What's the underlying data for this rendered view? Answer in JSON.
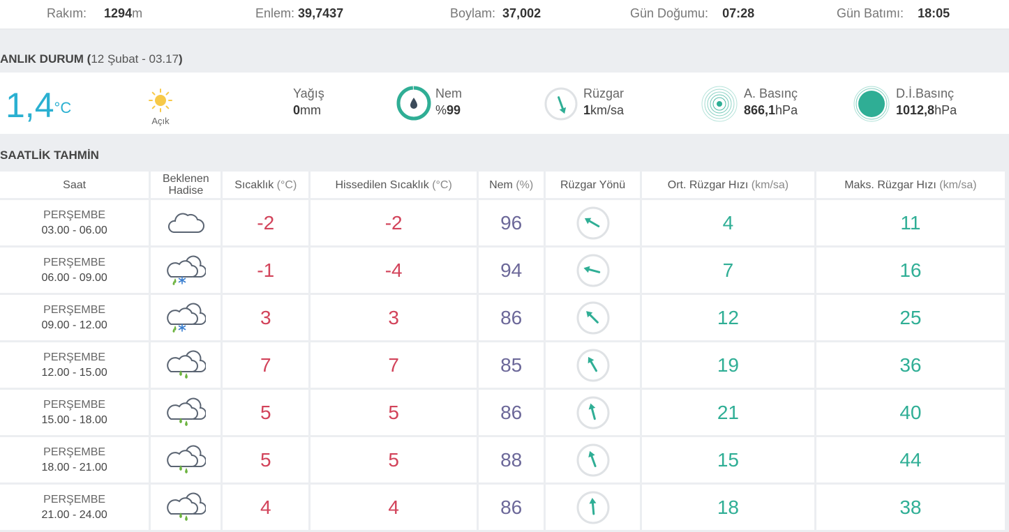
{
  "topbar": {
    "altitude_label": "Rakım:",
    "altitude_value": "1294",
    "altitude_unit": "m",
    "lat_label": "Enlem:",
    "lat_value": "39,7437",
    "lon_label": "Boylam:",
    "lon_value": "37,002",
    "sunrise_label": "Gün Doğumu:",
    "sunrise_value": "07:28",
    "sunset_label": "Gün Batımı:",
    "sunset_value": "18:05"
  },
  "current": {
    "title": "ANLIK DURUM (",
    "date": "12 Şubat - 03.17",
    "title_end": ")",
    "temp": "1,4",
    "temp_unit": "°C",
    "condition": "Açık",
    "condition_icon": "sun-icon",
    "rain_label": "Yağış",
    "rain_value": "0",
    "rain_unit": "mm",
    "humidity_label": "Nem",
    "humidity_prefix": "%",
    "humidity_value": "99",
    "wind_label": "Rüzgar",
    "wind_value": "1",
    "wind_unit": "km/sa",
    "pressure_label": "A. Basınç",
    "pressure_value": "866,1",
    "pressure_unit": "hPa",
    "sea_pressure_label": "D.İ.Basınç",
    "sea_pressure_value": "1012,8",
    "sea_pressure_unit": "hPa",
    "accent_color": "#2ab0d1",
    "gauge_color": "#2fae95"
  },
  "hourly": {
    "title": "SAATLİK TAHMİN",
    "headers": {
      "time": "Saat",
      "event_1": "Beklenen",
      "event_2": "Hadise",
      "temp": "Sıcaklık ",
      "temp_unit": "(°C)",
      "feels": "Hissedilen Sıcaklık ",
      "feels_unit": "(°C)",
      "hum": "Nem ",
      "hum_unit": "(%)",
      "dir": "Rüzgar Yönü",
      "avg": "Ort. Rüzgar Hızı ",
      "avg_unit": "(km/sa)",
      "max": "Maks. Rüzgar Hızı ",
      "max_unit": "(km/sa)"
    },
    "rows": [
      {
        "day": "PERŞEMBE",
        "time": "03.00 - 06.00",
        "icon": "cloudy-icon",
        "temp": "-2",
        "feels": "-2",
        "hum": "96",
        "dir_deg": 300,
        "avg": "4",
        "max": "11"
      },
      {
        "day": "PERŞEMBE",
        "time": "06.00 - 09.00",
        "icon": "snow-rain-icon",
        "temp": "-1",
        "feels": "-4",
        "hum": "94",
        "dir_deg": 285,
        "avg": "7",
        "max": "16"
      },
      {
        "day": "PERŞEMBE",
        "time": "09.00 - 12.00",
        "icon": "snow-rain-icon",
        "temp": "3",
        "feels": "3",
        "hum": "86",
        "dir_deg": 315,
        "avg": "12",
        "max": "25"
      },
      {
        "day": "PERŞEMBE",
        "time": "12.00 - 15.00",
        "icon": "rain-icon",
        "temp": "7",
        "feels": "7",
        "hum": "85",
        "dir_deg": 330,
        "avg": "19",
        "max": "36"
      },
      {
        "day": "PERŞEMBE",
        "time": "15.00 - 18.00",
        "icon": "rain-icon",
        "temp": "5",
        "feels": "5",
        "hum": "86",
        "dir_deg": 345,
        "avg": "21",
        "max": "40"
      },
      {
        "day": "PERŞEMBE",
        "time": "18.00 - 21.00",
        "icon": "rain-icon",
        "temp": "5",
        "feels": "5",
        "hum": "88",
        "dir_deg": 340,
        "avg": "15",
        "max": "44"
      },
      {
        "day": "PERŞEMBE",
        "time": "21.00 - 24.00",
        "icon": "rain-icon",
        "temp": "4",
        "feels": "4",
        "hum": "86",
        "dir_deg": 355,
        "avg": "18",
        "max": "38"
      }
    ]
  }
}
